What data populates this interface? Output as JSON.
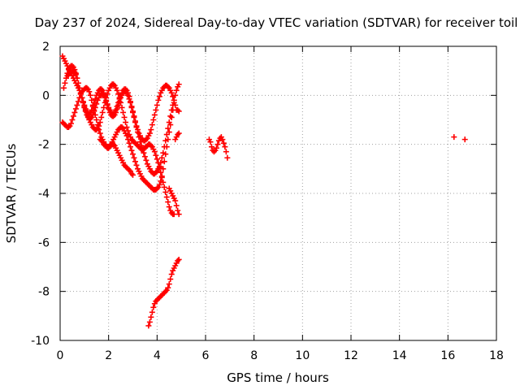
{
  "chart_data": {
    "type": "scatter",
    "title": "Day 237 of 2024, Sidereal Day-to-day VTEC variation (SDTVAR) for receiver toil",
    "xlabel": "GPS time / hours",
    "ylabel": "SDTVAR / TECUs",
    "xlim": [
      0,
      18
    ],
    "ylim": [
      -10,
      2
    ],
    "xticks": [
      0,
      2,
      4,
      6,
      8,
      10,
      12,
      14,
      16,
      18
    ],
    "yticks": [
      -10,
      -8,
      -6,
      -4,
      -2,
      0,
      2
    ],
    "grid": true,
    "marker": "+",
    "series": [
      {
        "name": "SDTVAR",
        "color": "#ff0000",
        "segments": [
          {
            "x": [
              0.1,
              0.15,
              0.2,
              0.25,
              0.3,
              0.35,
              0.4,
              0.45,
              0.5,
              0.55,
              0.6,
              0.65,
              0.7,
              0.75,
              0.8,
              0.85,
              0.9,
              0.95,
              1.0,
              1.05,
              1.1,
              1.15,
              1.2,
              1.25,
              1.3,
              1.35,
              1.4,
              1.45,
              1.5,
              1.55,
              1.6,
              1.65,
              1.7,
              1.75,
              1.8,
              1.85,
              1.9,
              1.95,
              2.0,
              2.05,
              2.1,
              2.15,
              2.2,
              2.25,
              2.3,
              2.35,
              2.4,
              2.45,
              2.5,
              2.55,
              2.6,
              2.65,
              2.7,
              2.75,
              2.8,
              2.85,
              2.9,
              2.95,
              3.0,
              3.05,
              3.1,
              3.15,
              3.2,
              3.25,
              3.3,
              3.35,
              3.4,
              3.45,
              3.5,
              3.55,
              3.6,
              3.65,
              3.7,
              3.75,
              3.8,
              3.85,
              3.9,
              3.95,
              4.0,
              4.05,
              4.1,
              4.15,
              4.2,
              4.25,
              4.3,
              4.35,
              4.4,
              4.45,
              4.5,
              4.55,
              4.6,
              4.65,
              4.7,
              4.75,
              4.8,
              4.85,
              4.9
            ],
            "y": [
              -1.1,
              -1.15,
              -1.2,
              -1.25,
              -1.3,
              -1.3,
              -1.25,
              -1.15,
              -1.0,
              -0.85,
              -0.7,
              -0.55,
              -0.4,
              -0.25,
              -0.1,
              0.05,
              0.15,
              0.2,
              0.25,
              0.3,
              0.3,
              0.25,
              0.15,
              0.0,
              -0.2,
              -0.4,
              -0.6,
              -0.8,
              -1.0,
              -1.2,
              -1.4,
              -1.55,
              -1.7,
              -1.8,
              -1.9,
              -2.0,
              -2.05,
              -2.1,
              -2.1,
              -2.05,
              -2.0,
              -1.9,
              -1.8,
              -1.7,
              -1.6,
              -1.5,
              -1.4,
              -1.35,
              -1.3,
              -1.3,
              -1.35,
              -1.45,
              -1.55,
              -1.65,
              -1.8,
              -1.95,
              -2.1,
              -2.25,
              -2.4,
              -2.55,
              -2.7,
              -2.85,
              -3.0,
              -3.1,
              -3.2,
              -3.3,
              -3.4,
              -3.45,
              -3.5,
              -3.55,
              -3.6,
              -3.65,
              -3.7,
              -3.75,
              -3.8,
              -3.85,
              -3.85,
              -3.85,
              -3.8,
              -3.75,
              -3.65,
              -3.5,
              -3.3,
              -3.0,
              -2.7,
              -2.4,
              -2.1,
              -1.8,
              -1.5,
              -1.2,
              -0.9,
              -0.6,
              -0.3,
              0.0,
              0.2,
              0.35,
              0.45
            ]
          },
          {
            "x": [
              0.1,
              0.15,
              0.2,
              0.25,
              0.3,
              0.35,
              0.4,
              0.45,
              0.5,
              0.55,
              0.6,
              0.65,
              0.7,
              0.75,
              0.8,
              0.85,
              0.9,
              0.95,
              1.0,
              1.05,
              1.1,
              1.15,
              1.2,
              1.25,
              1.3,
              1.35,
              1.4,
              1.45,
              1.5,
              1.55,
              1.6,
              1.65,
              1.7,
              1.75,
              1.8,
              1.85,
              1.9,
              1.95,
              2.0,
              2.05,
              2.1,
              2.15,
              2.2,
              2.25,
              2.3,
              2.35,
              2.4,
              2.45,
              2.5,
              2.55,
              2.6,
              2.65,
              2.7,
              2.75,
              2.8,
              2.85,
              2.9,
              2.95,
              3.0,
              3.05,
              3.1,
              3.15,
              3.2,
              3.25,
              3.3,
              3.35,
              3.4,
              3.45,
              3.5,
              3.55,
              3.6,
              3.65,
              3.7,
              3.75,
              3.8,
              3.85,
              3.9,
              3.95,
              4.0,
              4.05,
              4.1,
              4.15,
              4.2,
              4.25,
              4.3,
              4.35,
              4.4,
              4.45,
              4.5,
              4.55,
              4.6,
              4.65,
              4.7
            ],
            "y": [
              1.6,
              1.5,
              1.4,
              1.3,
              1.2,
              1.1,
              1.0,
              0.9,
              0.8,
              0.7,
              0.6,
              0.5,
              0.4,
              0.3,
              0.2,
              0.05,
              -0.1,
              -0.25,
              -0.4,
              -0.55,
              -0.7,
              -0.85,
              -1.0,
              -1.1,
              -1.2,
              -1.3,
              -1.35,
              -1.4,
              -1.4,
              -1.35,
              -1.25,
              -1.1,
              -0.9,
              -0.7,
              -0.5,
              -0.3,
              -0.1,
              0.05,
              0.2,
              0.3,
              0.4,
              0.45,
              0.45,
              0.4,
              0.3,
              0.2,
              0.05,
              -0.1,
              -0.3,
              -0.5,
              -0.7,
              -0.9,
              -1.1,
              -1.3,
              -1.45,
              -1.6,
              -1.7,
              -1.8,
              -1.85,
              -1.9,
              -1.95,
              -2.0,
              -2.05,
              -2.1,
              -2.15,
              -2.2,
              -2.2,
              -2.2,
              -2.15,
              -2.1,
              -2.05,
              -2.0,
              -2.0,
              -2.05,
              -2.1,
              -2.2,
              -2.3,
              -2.45,
              -2.6,
              -2.75,
              -2.95,
              -3.15,
              -3.35,
              -3.55,
              -3.75,
              -3.95,
              -4.15,
              -4.35,
              -4.55,
              -4.7,
              -4.8,
              -4.85,
              -4.85
            ]
          },
          {
            "x": [
              0.15,
              0.2,
              0.25,
              0.3,
              0.35,
              0.4,
              0.45,
              0.5,
              0.55,
              0.6,
              0.65,
              0.7,
              0.75,
              0.8,
              0.85,
              0.9,
              0.95,
              1.0,
              1.05,
              1.1,
              1.15,
              1.2,
              1.25,
              1.3,
              1.35,
              1.4,
              1.45,
              1.5,
              1.55,
              1.6,
              1.65,
              1.7,
              1.75,
              1.8,
              1.85,
              1.9,
              1.95,
              2.0,
              2.05,
              2.1,
              2.15,
              2.2,
              2.25,
              2.3,
              2.35,
              2.4,
              2.45,
              2.5,
              2.55,
              2.6,
              2.65,
              2.7,
              2.75,
              2.8,
              2.85,
              2.9,
              2.95,
              3.0,
              3.05,
              3.1,
              3.15,
              3.2,
              3.25,
              3.3,
              3.35,
              3.4,
              3.45,
              3.5,
              3.55,
              3.6,
              3.65,
              3.7,
              3.75,
              3.8,
              3.85,
              3.9,
              3.95,
              4.0,
              4.05,
              4.1,
              4.15,
              4.2,
              4.25,
              4.3,
              4.35,
              4.4,
              4.45,
              4.5,
              4.55,
              4.6,
              4.65,
              4.7,
              4.75,
              4.8
            ],
            "y": [
              0.3,
              0.5,
              0.7,
              0.9,
              1.05,
              1.15,
              1.2,
              1.2,
              1.15,
              1.05,
              0.9,
              0.7,
              0.5,
              0.3,
              0.1,
              -0.1,
              -0.3,
              -0.45,
              -0.6,
              -0.7,
              -0.75,
              -0.75,
              -0.7,
              -0.6,
              -0.45,
              -0.3,
              -0.15,
              0.0,
              0.1,
              0.2,
              0.25,
              0.25,
              0.2,
              0.1,
              -0.05,
              -0.2,
              -0.35,
              -0.5,
              -0.6,
              -0.7,
              -0.75,
              -0.75,
              -0.7,
              -0.6,
              -0.45,
              -0.3,
              -0.15,
              0.0,
              0.1,
              0.2,
              0.25,
              0.25,
              0.2,
              0.1,
              -0.05,
              -0.25,
              -0.45,
              -0.65,
              -0.85,
              -1.05,
              -1.25,
              -1.4,
              -1.55,
              -1.65,
              -1.75,
              -1.8,
              -1.85,
              -1.85,
              -1.8,
              -1.75,
              -1.65,
              -1.55,
              -1.4,
              -1.2,
              -1.0,
              -0.8,
              -0.6,
              -0.4,
              -0.2,
              -0.05,
              0.1,
              0.2,
              0.3,
              0.35,
              0.4,
              0.4,
              0.35,
              0.3,
              0.2,
              0.1,
              -0.05,
              -0.2,
              -0.4,
              -0.6
            ]
          },
          {
            "x": [
              0.3,
              0.35,
              0.4,
              0.45,
              0.5,
              0.55,
              0.6,
              0.65,
              0.7,
              0.75,
              0.8,
              0.85,
              0.9,
              0.95,
              1.0,
              1.05,
              1.1,
              1.15,
              1.2,
              1.25,
              1.3,
              1.35,
              1.4,
              1.45,
              1.5,
              1.55,
              1.6,
              1.65,
              1.7,
              1.75,
              1.8,
              1.85,
              1.9,
              1.95,
              2.0,
              2.05,
              2.1,
              2.15,
              2.2,
              2.25,
              2.3,
              2.35,
              2.4,
              2.45,
              2.5,
              2.55,
              2.6,
              2.65,
              2.7,
              2.75,
              2.8,
              2.85,
              2.9,
              2.95,
              3.0,
              3.05,
              3.1,
              3.15,
              3.2,
              3.25,
              3.3,
              3.35,
              3.4,
              3.45,
              3.5,
              3.55,
              3.6,
              3.65,
              3.7,
              3.75,
              3.8,
              3.85,
              3.9,
              3.95,
              4.0,
              4.05,
              4.1,
              4.15,
              4.2,
              4.25,
              4.3,
              4.35,
              4.4,
              4.45,
              4.5,
              4.55,
              4.6,
              4.65,
              4.7
            ],
            "y": [
              0.8,
              0.85,
              0.9,
              0.95,
              1.0,
              1.0,
              0.95,
              0.85,
              0.7,
              0.5,
              0.3,
              0.1,
              -0.1,
              -0.3,
              -0.5,
              -0.65,
              -0.8,
              -0.9,
              -0.95,
              -0.95,
              -0.9,
              -0.8,
              -0.65,
              -0.5,
              -0.35,
              -0.2,
              -0.1,
              0.0,
              0.05,
              0.05,
              0.0,
              -0.1,
              -0.25,
              -0.4,
              -0.55,
              -0.7,
              -0.8,
              -0.85,
              -0.85,
              -0.8,
              -0.7,
              -0.55,
              -0.4,
              -0.25,
              -0.1,
              0.0,
              0.1,
              0.15,
              0.15,
              0.1,
              0.0,
              -0.15,
              -0.3,
              -0.5,
              -0.7,
              -0.9,
              -1.1,
              -1.3,
              -1.5,
              -1.7,
              -1.9,
              -2.05,
              -2.2,
              -2.35,
              -2.5,
              -2.65,
              -2.8,
              -2.9,
              -3.0,
              -3.1,
              -3.15,
              -3.2,
              -3.2,
              -3.15,
              -3.1,
              -3.0,
              -2.9,
              -2.75,
              -2.55,
              -2.35,
              -2.1,
              -1.85,
              -1.6,
              -1.35,
              -1.1,
              -0.85,
              -0.6,
              -0.4,
              -0.2
            ]
          },
          {
            "x": [
              1.65,
              1.7,
              1.75,
              1.8,
              1.85,
              1.9,
              1.95,
              2.0,
              2.05,
              2.1,
              2.15,
              2.2,
              2.25,
              2.3,
              2.35,
              2.4,
              2.45,
              2.5,
              2.55,
              2.6,
              2.65,
              2.7,
              2.75,
              2.8,
              2.85,
              2.9,
              2.95,
              3.0
            ],
            "y": [
              -1.8,
              -1.85,
              -1.9,
              -2.0,
              -2.05,
              -2.1,
              -2.15,
              -2.15,
              -2.1,
              -2.05,
              -2.0,
              -2.0,
              -2.05,
              -2.15,
              -2.25,
              -2.35,
              -2.45,
              -2.55,
              -2.65,
              -2.75,
              -2.85,
              -2.9,
              -2.95,
              -3.0,
              -3.05,
              -3.1,
              -3.2,
              -3.25
            ]
          },
          {
            "x": [
              4.5,
              4.55,
              4.6,
              4.65,
              4.7,
              4.75,
              4.8,
              4.85,
              4.9
            ],
            "y": [
              -3.8,
              -3.9,
              -4.0,
              -4.1,
              -4.2,
              -4.3,
              -4.5,
              -4.7,
              -4.85
            ]
          },
          {
            "x": [
              4.75,
              4.8,
              4.85,
              4.9
            ],
            "y": [
              -1.8,
              -1.7,
              -1.6,
              -1.55
            ]
          },
          {
            "x": [
              4.85,
              4.9
            ],
            "y": [
              -0.6,
              -0.65
            ]
          },
          {
            "x": [
              3.65,
              3.7,
              3.75,
              3.8,
              3.85,
              3.9,
              3.95,
              4.0,
              4.05,
              4.1,
              4.15,
              4.2,
              4.25,
              4.3,
              4.35,
              4.4,
              4.45,
              4.5,
              4.55,
              4.6,
              4.65,
              4.7,
              4.75,
              4.8,
              4.85,
              4.9
            ],
            "y": [
              -9.4,
              -9.25,
              -9.05,
              -8.85,
              -8.65,
              -8.5,
              -8.4,
              -8.35,
              -8.3,
              -8.25,
              -8.2,
              -8.15,
              -8.1,
              -8.05,
              -8.0,
              -7.95,
              -7.85,
              -7.7,
              -7.5,
              -7.3,
              -7.15,
              -7.05,
              -6.95,
              -6.85,
              -6.75,
              -6.7
            ]
          },
          {
            "x": [
              6.15,
              6.2,
              6.25,
              6.3,
              6.35,
              6.4,
              6.45,
              6.5,
              6.55,
              6.6,
              6.65,
              6.7,
              6.75,
              6.8,
              6.85,
              6.9
            ],
            "y": [
              -1.8,
              -1.9,
              -2.1,
              -2.25,
              -2.3,
              -2.25,
              -2.15,
              -2.0,
              -1.85,
              -1.75,
              -1.7,
              -1.8,
              -1.95,
              -2.1,
              -2.3,
              -2.55
            ]
          },
          {
            "x": [
              16.25,
              16.7
            ],
            "y": [
              -1.7,
              -1.8
            ]
          }
        ]
      }
    ]
  }
}
